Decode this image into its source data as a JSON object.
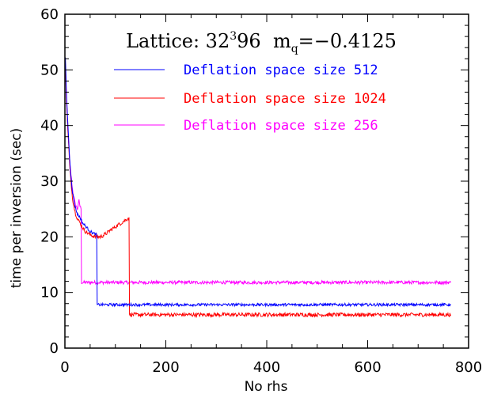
{
  "chart_data": {
    "type": "line",
    "title": "Lattice: 32³96 m_q=−0.4125",
    "title_parts": {
      "prefix": "Lattice: 32",
      "sup": "3",
      "mid": "96  m",
      "sub": "q",
      "suffix": "=−0.4125"
    },
    "xlabel": "No rhs",
    "ylabel": "time per inversion (sec)",
    "xlim": [
      0,
      800
    ],
    "ylim": [
      0,
      60
    ],
    "xticks": [
      0,
      200,
      400,
      600,
      800
    ],
    "yticks": [
      0,
      10,
      20,
      30,
      40,
      50,
      60
    ],
    "legend_position": "top-right",
    "grid": false,
    "series": [
      {
        "name": "Deflation space size 512",
        "color": "#0000ff",
        "x": [
          1,
          3,
          6,
          10,
          15,
          20,
          25,
          30,
          35,
          40,
          45,
          50,
          55,
          60,
          63,
          64,
          70,
          100,
          200,
          300,
          400,
          500,
          600,
          700,
          765
        ],
        "y": [
          52,
          46,
          40,
          33,
          28,
          25.5,
          24,
          23.5,
          22.5,
          22,
          21.5,
          21,
          20.7,
          20.5,
          20.4,
          7.8,
          7.8,
          7.8,
          7.8,
          7.8,
          7.8,
          7.8,
          7.8,
          7.8,
          7.8
        ],
        "noise": 0.25
      },
      {
        "name": "Deflation space size 1024",
        "color": "#ff0000",
        "x": [
          1,
          3,
          6,
          10,
          15,
          20,
          25,
          30,
          35,
          40,
          45,
          50,
          55,
          60,
          65,
          70,
          75,
          80,
          85,
          90,
          95,
          100,
          105,
          110,
          115,
          120,
          125,
          127,
          128,
          140,
          200,
          300,
          400,
          500,
          600,
          700,
          765
        ],
        "y": [
          51,
          45,
          39,
          32,
          27,
          24.5,
          23.2,
          22.5,
          21.7,
          21,
          20.7,
          20.4,
          20.2,
          20,
          20,
          20,
          20.2,
          20.5,
          20.8,
          21.2,
          21.5,
          21.8,
          22.1,
          22.4,
          22.7,
          23,
          23.3,
          23.5,
          6,
          6,
          6,
          6,
          6,
          6,
          6,
          6,
          6
        ],
        "noise": 0.35
      },
      {
        "name": "Deflation space size 256",
        "color": "#ff00ff",
        "x": [
          1,
          3,
          6,
          10,
          15,
          20,
          25,
          28,
          30,
          32,
          33,
          40,
          100,
          200,
          300,
          400,
          500,
          600,
          700,
          765
        ],
        "y": [
          51,
          45,
          39,
          33,
          28.5,
          26,
          25,
          26.5,
          25.5,
          25,
          11.8,
          11.8,
          11.8,
          11.8,
          11.8,
          11.8,
          11.8,
          11.8,
          11.8,
          11.8
        ],
        "noise": 0.3
      }
    ]
  }
}
